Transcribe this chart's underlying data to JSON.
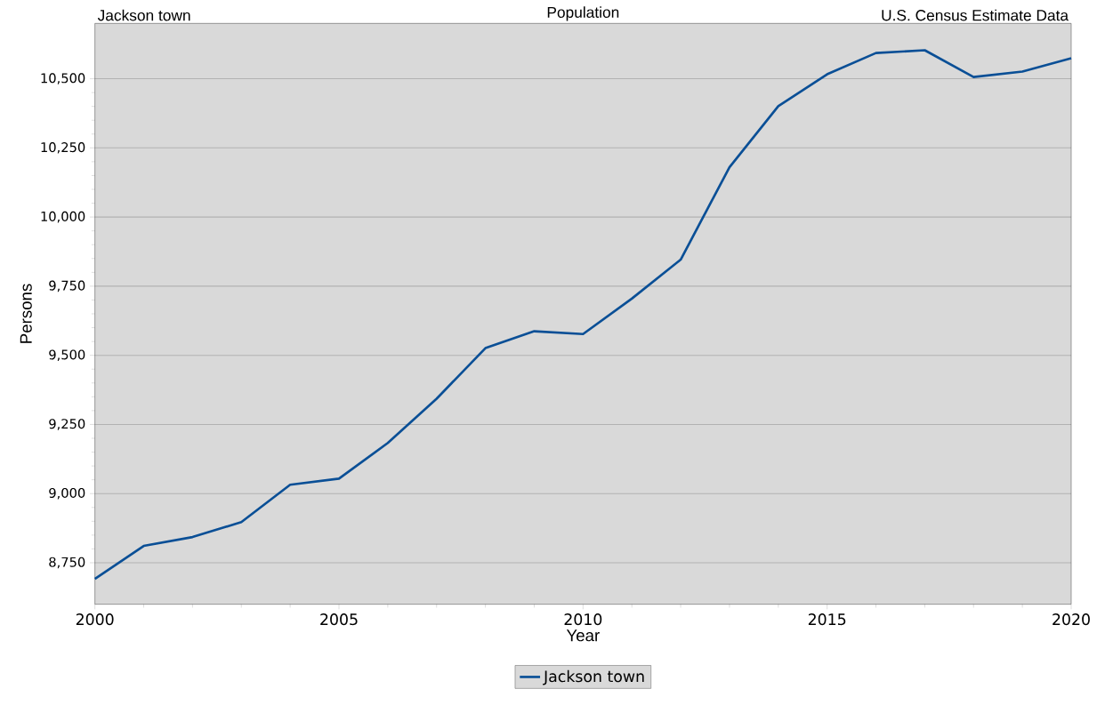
{
  "chart_data": {
    "type": "line",
    "title": "Population",
    "xlabel": "Year",
    "ylabel": "Persons",
    "annotations": [
      "Jackson town",
      "U.S. Census Estimate Data"
    ],
    "x": [
      2000,
      2001,
      2002,
      2003,
      2004,
      2005,
      2006,
      2007,
      2008,
      2009,
      2010,
      2011,
      2012,
      2013,
      2014,
      2015,
      2016,
      2017,
      2018,
      2019,
      2020
    ],
    "series": [
      {
        "name": "Jackson town",
        "color": "#0a4f96",
        "values": [
          8692,
          8811,
          8843,
          8897,
          9032,
          9054,
          9183,
          9343,
          9526,
          9587,
          9577,
          9705,
          9846,
          10180,
          10401,
          10516,
          10593,
          10603,
          10506,
          10526,
          10574
        ]
      }
    ],
    "xlim": [
      2000,
      2020
    ],
    "xticks": [
      2000,
      2005,
      2010,
      2015,
      2020
    ],
    "ylim": [
      8600,
      10700
    ],
    "yticks": [
      {
        "value": 8750,
        "label": "8,750"
      },
      {
        "value": 9000,
        "label": "9,000"
      },
      {
        "value": 9250,
        "label": "9,250"
      },
      {
        "value": 9500,
        "label": "9,500"
      },
      {
        "value": 9750,
        "label": "9,750"
      },
      {
        "value": 10000,
        "label": "10,000"
      },
      {
        "value": 10250,
        "label": "10,250"
      },
      {
        "value": 10500,
        "label": "10,500"
      }
    ],
    "grid": "y",
    "legend": "bottom",
    "marker": "none",
    "line_style": "solid"
  }
}
